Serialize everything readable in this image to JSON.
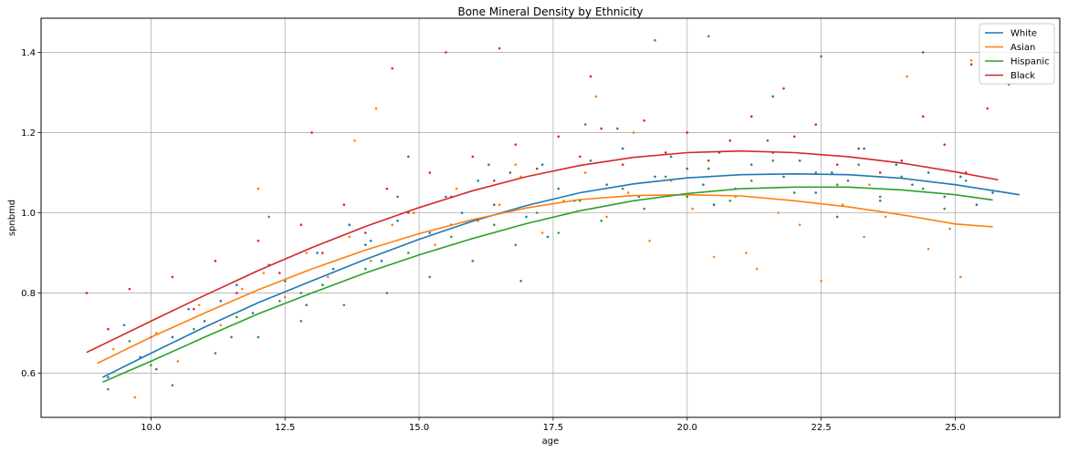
{
  "chart_data": {
    "type": "scatter",
    "title": "Bone Mineral Density by Ethnicity",
    "xlabel": "age",
    "ylabel": "spnbmd",
    "xlim": [
      7.95,
      26.95
    ],
    "ylim": [
      0.49,
      1.485
    ],
    "xticks": [
      10.0,
      12.5,
      15.0,
      17.5,
      20.0,
      22.5,
      25.0
    ],
    "xtick_labels": [
      "10.0",
      "12.5",
      "15.0",
      "17.5",
      "20.0",
      "22.5",
      "25.0"
    ],
    "yticks": [
      0.6,
      0.8,
      1.0,
      1.2,
      1.4
    ],
    "ytick_labels": [
      "0.6",
      "0.8",
      "1.0",
      "1.2",
      "1.4"
    ],
    "grid": true,
    "legend_position": "top-right",
    "series": [
      {
        "name": "White",
        "color": "#1f77b4",
        "fit_line": {
          "x": [
            9.1,
            10.0,
            11.0,
            12.0,
            13.0,
            14.0,
            15.0,
            16.0,
            17.0,
            18.0,
            19.0,
            20.0,
            21.0,
            22.0,
            23.0,
            24.0,
            25.0,
            26.2
          ],
          "y": [
            0.59,
            0.65,
            0.715,
            0.776,
            0.83,
            0.884,
            0.934,
            0.979,
            1.018,
            1.05,
            1.072,
            1.087,
            1.095,
            1.097,
            1.095,
            1.086,
            1.07,
            1.045
          ]
        },
        "points": {
          "x": [
            9.2,
            9.5,
            9.8,
            10.1,
            10.4,
            10.7,
            11.0,
            11.3,
            11.6,
            11.9,
            12.2,
            12.5,
            12.8,
            13.1,
            13.4,
            13.7,
            14.0,
            14.3,
            14.6,
            14.9,
            15.2,
            15.5,
            15.8,
            16.1,
            16.4,
            16.7,
            17.0,
            17.3,
            17.6,
            17.9,
            18.2,
            18.5,
            18.8,
            19.1,
            19.4,
            19.7,
            20.0,
            20.3,
            20.6,
            20.9,
            21.2,
            21.5,
            21.8,
            22.1,
            22.4,
            22.7,
            23.0,
            23.3,
            23.6,
            23.9,
            24.2,
            24.5,
            24.8,
            25.1,
            25.4,
            25.7,
            26.0,
            13.2,
            14.1,
            15.6,
            16.3,
            17.4,
            18.7,
            20.5,
            21.6,
            22.8,
            24.4,
            11.5,
            12.9,
            14.8
          ],
          "y": [
            0.59,
            0.72,
            0.64,
            0.61,
            0.69,
            0.76,
            0.73,
            0.78,
            0.82,
            0.75,
            0.87,
            0.83,
            0.8,
            0.9,
            0.86,
            0.97,
            0.92,
            0.88,
            0.98,
            1.0,
            0.95,
            1.04,
            1.0,
            1.08,
            1.02,
            1.1,
            0.99,
            1.12,
            1.06,
            1.03,
            1.13,
            1.07,
            1.16,
            1.04,
            1.09,
            1.14,
            1.11,
            1.07,
            1.15,
            1.06,
            1.12,
            1.18,
            1.09,
            1.13,
            1.05,
            1.1,
            1.08,
            1.16,
            1.03,
            1.12,
            1.07,
            1.1,
            1.04,
            1.09,
            1.02,
            1.05,
            1.32,
            0.82,
            0.93,
            0.97,
            1.12,
            0.94,
            1.21,
            1.02,
            1.29,
            0.99,
            1.4,
            0.69,
            0.77,
            1.14
          ]
        }
      },
      {
        "name": "Asian",
        "color": "#ff7f0e",
        "fit_line": {
          "x": [
            9.0,
            10.0,
            11.0,
            12.0,
            13.0,
            14.0,
            15.0,
            16.0,
            17.0,
            18.0,
            19.0,
            20.0,
            21.0,
            22.0,
            23.0,
            24.0,
            25.0,
            25.7
          ],
          "y": [
            0.625,
            0.69,
            0.75,
            0.808,
            0.86,
            0.907,
            0.948,
            0.983,
            1.012,
            1.033,
            1.043,
            1.045,
            1.042,
            1.03,
            1.015,
            0.995,
            0.972,
            0.965
          ]
        },
        "points": {
          "x": [
            9.3,
            9.7,
            10.1,
            10.5,
            10.9,
            11.3,
            11.7,
            12.1,
            12.5,
            12.9,
            13.3,
            13.7,
            14.1,
            14.5,
            14.9,
            15.3,
            15.7,
            16.1,
            16.5,
            16.9,
            17.3,
            17.7,
            18.1,
            18.5,
            18.9,
            19.3,
            19.7,
            20.1,
            20.5,
            20.9,
            21.3,
            21.7,
            22.1,
            22.5,
            22.9,
            23.3,
            23.7,
            24.1,
            24.5,
            24.9,
            25.3,
            12.0,
            14.2,
            16.8,
            19.0,
            21.1,
            23.4,
            25.1,
            13.8,
            18.3
          ],
          "y": [
            0.66,
            0.54,
            0.7,
            0.63,
            0.77,
            0.72,
            0.81,
            0.85,
            0.79,
            0.9,
            0.84,
            0.94,
            0.88,
            0.97,
            1.0,
            0.92,
            1.06,
            0.98,
            1.02,
            1.09,
            0.95,
            1.03,
            1.1,
            0.99,
            1.05,
            0.93,
            1.08,
            1.01,
            0.89,
            1.04,
            0.86,
            1.0,
            0.97,
            0.83,
            1.02,
            0.94,
            0.99,
            1.34,
            0.91,
            0.96,
            1.38,
            1.06,
            1.26,
            1.12,
            1.2,
            0.9,
            1.07,
            0.84,
            1.18,
            1.29
          ]
        }
      },
      {
        "name": "Hispanic",
        "color": "#2ca02c",
        "fit_line": {
          "x": [
            9.1,
            10.0,
            11.0,
            12.0,
            13.0,
            14.0,
            15.0,
            16.0,
            17.0,
            18.0,
            19.0,
            20.0,
            21.0,
            22.0,
            23.0,
            24.0,
            25.0,
            25.7
          ],
          "y": [
            0.578,
            0.63,
            0.69,
            0.748,
            0.8,
            0.85,
            0.895,
            0.936,
            0.973,
            1.005,
            1.03,
            1.048,
            1.06,
            1.064,
            1.064,
            1.057,
            1.045,
            1.032
          ]
        },
        "points": {
          "x": [
            9.2,
            9.6,
            10.0,
            10.4,
            10.8,
            11.2,
            11.6,
            12.0,
            12.4,
            12.8,
            13.2,
            13.6,
            14.0,
            14.4,
            14.8,
            15.2,
            15.6,
            16.0,
            16.4,
            16.8,
            17.2,
            17.6,
            18.0,
            18.4,
            18.8,
            19.2,
            19.6,
            20.0,
            20.4,
            20.8,
            21.2,
            21.6,
            22.0,
            22.4,
            22.8,
            23.2,
            23.6,
            24.0,
            24.4,
            24.8,
            25.2,
            19.4,
            20.4,
            22.5,
            16.9,
            12.2,
            14.6,
            18.1
          ],
          "y": [
            0.56,
            0.68,
            0.62,
            0.57,
            0.71,
            0.65,
            0.74,
            0.69,
            0.78,
            0.73,
            0.82,
            0.77,
            0.86,
            0.8,
            0.9,
            0.84,
            0.94,
            0.88,
            0.97,
            0.92,
            1.0,
            0.95,
            1.03,
            0.98,
            1.06,
            1.01,
            1.09,
            1.04,
            1.11,
            1.03,
            1.08,
            1.13,
            1.05,
            1.1,
            1.07,
            1.12,
            1.04,
            1.09,
            1.06,
            1.01,
            1.08,
            1.43,
            1.44,
            1.39,
            0.83,
            0.99,
            1.04,
            1.22
          ]
        }
      },
      {
        "name": "Black",
        "color": "#d62728",
        "fit_line": {
          "x": [
            8.8,
            10.0,
            11.0,
            12.0,
            13.0,
            14.0,
            15.0,
            16.0,
            17.0,
            18.0,
            19.0,
            20.0,
            21.0,
            22.0,
            23.0,
            24.0,
            25.0,
            25.8
          ],
          "y": [
            0.652,
            0.73,
            0.794,
            0.856,
            0.913,
            0.966,
            1.013,
            1.055,
            1.09,
            1.118,
            1.138,
            1.15,
            1.154,
            1.15,
            1.14,
            1.124,
            1.102,
            1.082
          ]
        },
        "points": {
          "x": [
            8.8,
            9.2,
            9.6,
            10.0,
            10.4,
            10.8,
            11.2,
            11.6,
            12.0,
            12.4,
            12.8,
            13.2,
            13.6,
            14.0,
            14.4,
            14.8,
            15.2,
            15.6,
            16.0,
            16.4,
            16.8,
            17.2,
            17.6,
            18.0,
            18.4,
            18.8,
            19.2,
            19.6,
            20.0,
            20.4,
            20.8,
            21.2,
            21.6,
            22.0,
            22.4,
            22.8,
            23.2,
            23.6,
            24.0,
            24.4,
            24.8,
            25.2,
            25.6,
            14.5,
            15.5,
            16.5,
            13.0,
            18.2,
            21.8,
            25.3
          ],
          "y": [
            0.8,
            0.71,
            0.81,
            0.69,
            0.84,
            0.76,
            0.88,
            0.8,
            0.93,
            0.85,
            0.97,
            0.9,
            1.02,
            0.95,
            1.06,
            1.0,
            1.1,
            1.04,
            1.14,
            1.08,
            1.17,
            1.11,
            1.19,
            1.14,
            1.21,
            1.12,
            1.23,
            1.15,
            1.2,
            1.13,
            1.18,
            1.24,
            1.15,
            1.19,
            1.22,
            1.12,
            1.16,
            1.1,
            1.13,
            1.24,
            1.17,
            1.1,
            1.26,
            1.36,
            1.4,
            1.41,
            1.2,
            1.34,
            1.31,
            1.37
          ]
        }
      }
    ]
  }
}
